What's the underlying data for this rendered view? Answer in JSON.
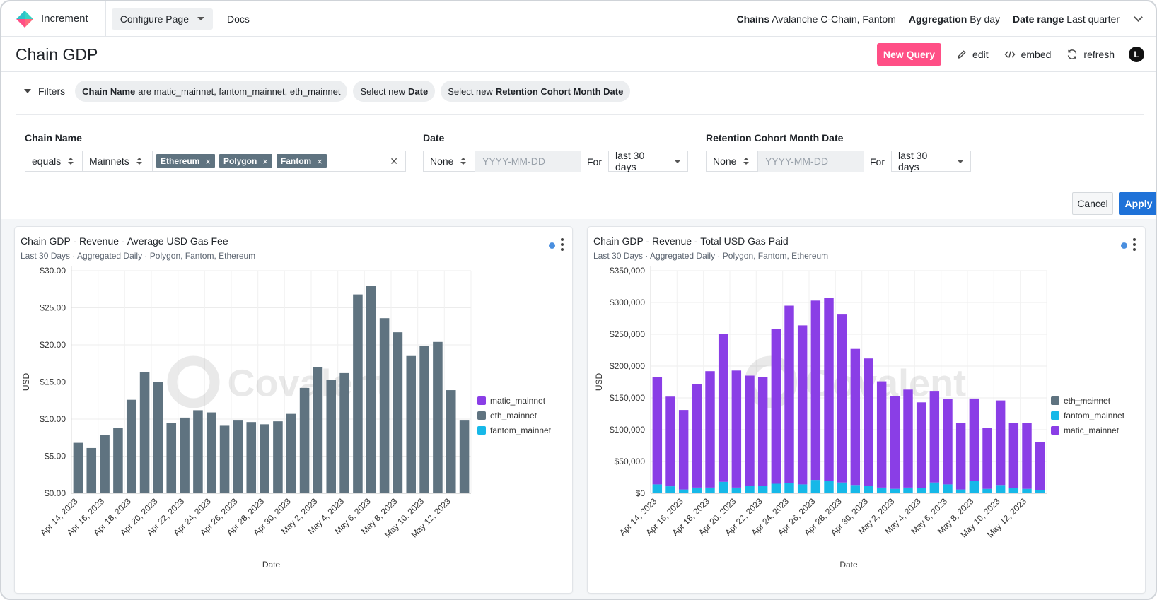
{
  "app": {
    "name": "Increment",
    "configure_label": "Configure Page",
    "docs_label": "Docs",
    "chains_label": "Chains",
    "chains_value": "Avalanche C-Chain, Fantom",
    "aggregation_label": "Aggregation",
    "aggregation_value": "By day",
    "date_range_label": "Date range",
    "date_range_value": "Last quarter"
  },
  "page": {
    "title": "Chain GDP",
    "new_query_label": "New Query",
    "edit_label": "edit",
    "embed_label": "embed",
    "refresh_label": "refresh",
    "avatar_initial": "L"
  },
  "filters": {
    "toggle_label": "Filters",
    "pills": [
      {
        "bold": "Chain Name",
        "text": "are matic_mainnet, fantom_mainnet, eth_mainnet",
        "after": ""
      },
      {
        "bold": "",
        "text": "Select new",
        "after": "Date"
      },
      {
        "bold": "",
        "text": "Select new",
        "after": "Retention Cohort Month Date"
      }
    ],
    "chain_name": {
      "label": "Chain Name",
      "operator": "equals",
      "group": "Mainnets",
      "tags": [
        "Ethereum",
        "Polygon",
        "Fantom"
      ],
      "remove_glyph": "×",
      "clear_glyph": "✕"
    },
    "date": {
      "label": "Date",
      "mode": "None",
      "placeholder": "YYYY-MM-DD",
      "for_label": "For",
      "range": "last 30 days"
    },
    "retention": {
      "label": "Retention Cohort Month Date",
      "mode": "None",
      "placeholder": "YYYY-MM-DD",
      "for_label": "For",
      "range": "last 30 days"
    },
    "cancel_label": "Cancel",
    "apply_label": "Apply"
  },
  "colors": {
    "accent_pink": "#ff4f86",
    "apply_blue": "#1f72d8",
    "eth": "#5f7380",
    "fantom": "#16b8e8",
    "matic": "#8a3ee6"
  },
  "watermark": "Covalent",
  "chart_data": [
    {
      "type": "bar",
      "title": "Chain GDP - Revenue - Average USD Gas Fee",
      "subtitle": "Last 30 Days · Aggregated Daily · Polygon, Fantom, Ethereum",
      "xlabel": "Date",
      "ylabel": "USD",
      "ylim": [
        0,
        30
      ],
      "yticks": [
        "$0.00",
        "$5.00",
        "$10.00",
        "$15.00",
        "$20.00",
        "$25.00",
        "$30.00"
      ],
      "tick_labels": [
        "Apr 14, 2023",
        "Apr 16, 2023",
        "Apr 18, 2023",
        "Apr 20, 2023",
        "Apr 22, 2023",
        "Apr 24, 2023",
        "Apr 26, 2023",
        "Apr 28, 2023",
        "Apr 30, 2023",
        "May 2, 2023",
        "May 4, 2023",
        "May 6, 2023",
        "May 8, 2023",
        "May 10, 2023",
        "May 12, 2023"
      ],
      "legend": [
        {
          "name": "matic_mainnet",
          "color": "#8a3ee6",
          "struck": false
        },
        {
          "name": "eth_mainnet",
          "color": "#5f7380",
          "struck": false
        },
        {
          "name": "fantom_mainnet",
          "color": "#16b8e8",
          "struck": false
        }
      ],
      "series": [
        {
          "name": "eth_mainnet",
          "color": "#5f7380",
          "values": [
            6.8,
            6.1,
            7.9,
            8.8,
            12.6,
            16.3,
            15.0,
            9.5,
            10.2,
            11.2,
            10.9,
            9.1,
            9.8,
            9.6,
            9.3,
            9.7,
            10.7,
            14.2,
            17.0,
            15.3,
            16.2,
            26.8,
            28.0,
            23.6,
            21.7,
            18.5,
            19.9,
            20.4,
            13.9,
            9.8
          ]
        }
      ]
    },
    {
      "type": "bar",
      "title": "Chain GDP - Revenue - Total USD Gas Paid",
      "subtitle": "Last 30 Days · Aggregated Daily · Polygon, Fantom, Ethereum",
      "xlabel": "Date",
      "ylabel": "USD",
      "ylim": [
        0,
        350000
      ],
      "yticks": [
        "$0",
        "$50,000",
        "$100,000",
        "$150,000",
        "$200,000",
        "$250,000",
        "$300,000",
        "$350,000"
      ],
      "tick_labels": [
        "Apr 14, 2023",
        "Apr 16, 2023",
        "Apr 18, 2023",
        "Apr 20, 2023",
        "Apr 22, 2023",
        "Apr 24, 2023",
        "Apr 26, 2023",
        "Apr 28, 2023",
        "Apr 30, 2023",
        "May 2, 2023",
        "May 4, 2023",
        "May 6, 2023",
        "May 8, 2023",
        "May 10, 2023",
        "May 12, 2023"
      ],
      "legend": [
        {
          "name": "eth_mainnet",
          "color": "#5f7380",
          "struck": true
        },
        {
          "name": "fantom_mainnet",
          "color": "#16b8e8",
          "struck": false
        },
        {
          "name": "matic_mainnet",
          "color": "#8a3ee6",
          "struck": false
        }
      ],
      "series": [
        {
          "name": "fantom_mainnet",
          "color": "#16b8e8",
          "values": [
            14000,
            11000,
            6000,
            9000,
            9000,
            18000,
            9000,
            12000,
            12000,
            15000,
            16000,
            14000,
            21000,
            19000,
            17000,
            13000,
            12000,
            9000,
            7000,
            9000,
            8000,
            17000,
            14000,
            6000,
            20000,
            7000,
            13000,
            8000,
            7000,
            5000
          ]
        },
        {
          "name": "matic_mainnet",
          "color": "#8a3ee6",
          "values": [
            169000,
            141000,
            125000,
            163000,
            183000,
            233000,
            184000,
            173000,
            171000,
            243000,
            279000,
            250000,
            282000,
            288000,
            264000,
            214000,
            200000,
            167000,
            146000,
            154000,
            135000,
            144000,
            134000,
            104000,
            129000,
            96000,
            133000,
            103000,
            103000,
            76000
          ]
        }
      ]
    }
  ]
}
